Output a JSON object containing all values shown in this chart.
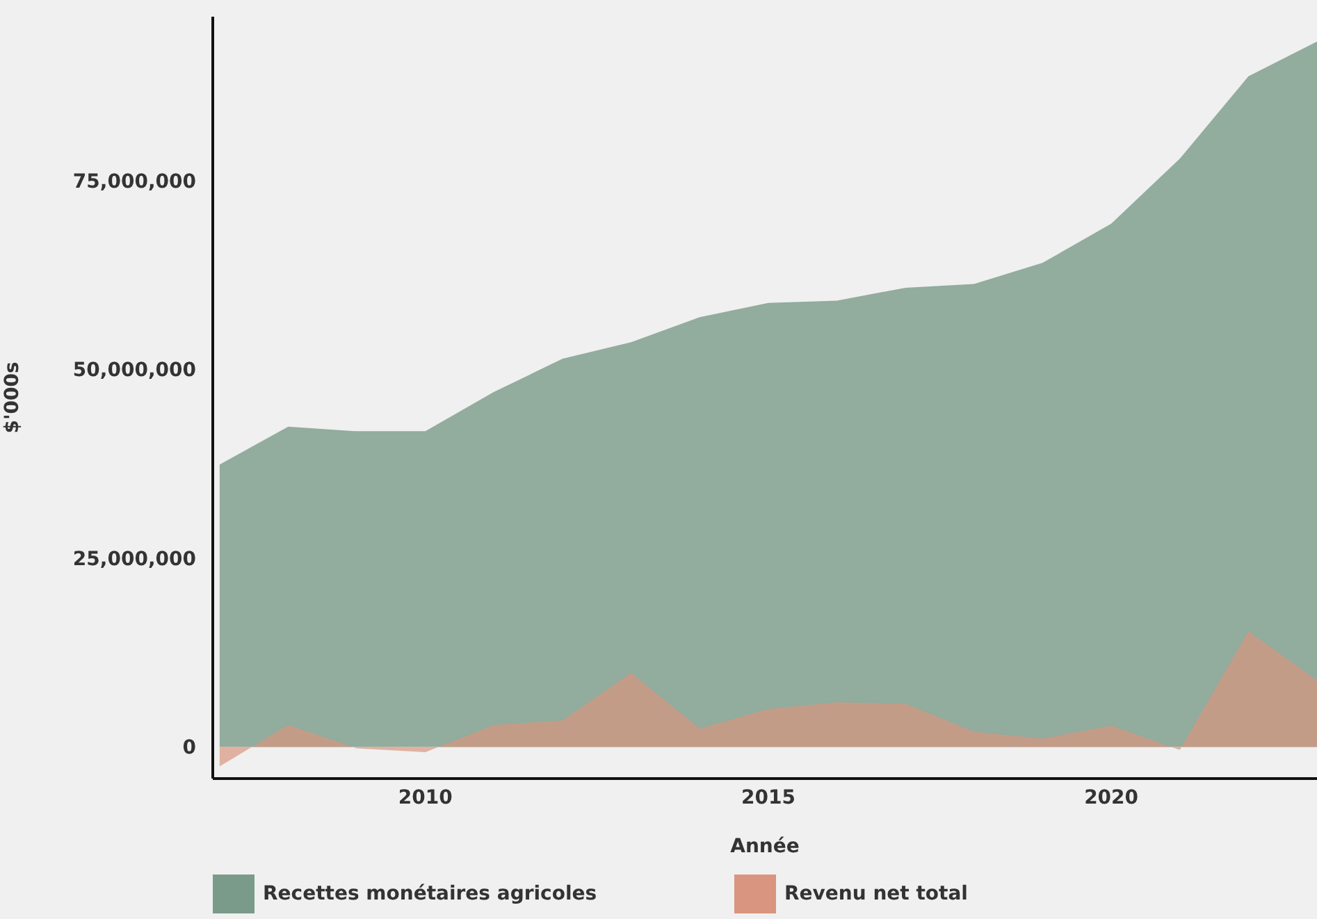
{
  "chart_data": {
    "type": "area",
    "xlabel": "Année",
    "ylabel": "$'000s",
    "x": [
      2007,
      2008,
      2009,
      2010,
      2011,
      2012,
      2013,
      2014,
      2015,
      2016,
      2017,
      2018,
      2019,
      2020,
      2021,
      2022,
      2023
    ],
    "series": [
      {
        "name": "Recettes monétaires agricoles",
        "color": "#7a9b8a",
        "values": [
          37400000,
          42400000,
          41800000,
          41800000,
          47000000,
          51400000,
          53600000,
          56900000,
          58800000,
          59100000,
          60800000,
          61300000,
          64100000,
          69300000,
          77900000,
          88800000,
          93400000
        ]
      },
      {
        "name": "Revenu net total",
        "color": "#d9957f",
        "values": [
          -2600000,
          2900000,
          -200000,
          -700000,
          2900000,
          3500000,
          9800000,
          2400000,
          5000000,
          5900000,
          5700000,
          2000000,
          1100000,
          2800000,
          -400000,
          15300000,
          8800000
        ]
      }
    ],
    "xlim": [
      2006.9,
      2023
    ],
    "xticks": [
      2010,
      2015,
      2020
    ],
    "ylim": [
      -4200000,
      96700000
    ],
    "yticks": [
      {
        "value": 0,
        "label": "0"
      },
      {
        "value": 25000000,
        "label": "25,000,000"
      },
      {
        "value": 50000000,
        "label": "50,000,000"
      },
      {
        "value": 75000000,
        "label": "75,000,000"
      }
    ],
    "grid": false,
    "legend": "bottom"
  }
}
